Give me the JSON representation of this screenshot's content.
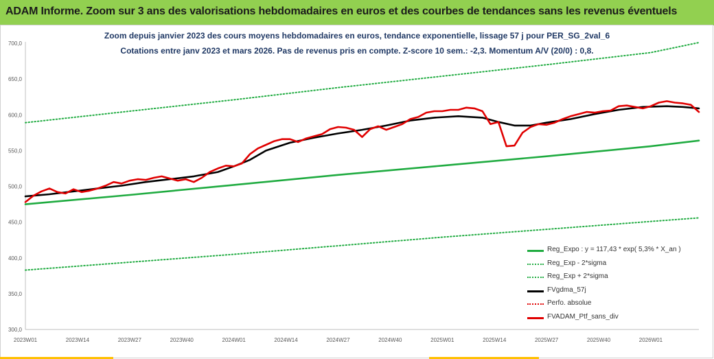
{
  "header": {
    "title": "ADAM Informe. Zoom sur 3 ans des valorisations hebdomadaires en euros et des courbes de tendances sans les revenus éventuels"
  },
  "chart_data": {
    "type": "line",
    "title": "Zoom depuis janvier 2023 des cours moyens hebdomadaires  en euros, tendance exponentielle, lissage 57 j pour PER_SG_2val_6",
    "subtitle": "Cotations entre janv 2023 et mars 2026. Pas de revenus pris en compte. Z-score 10 sem.: -2,3. Momentum A/V (20/0) : 0,8.",
    "xlabel": "",
    "ylabel": "",
    "ylim": [
      300,
      700
    ],
    "yticks": [
      "300,0",
      "350,0",
      "400,0",
      "450,0",
      "500,0",
      "550,0",
      "600,0",
      "650,0",
      "700,0"
    ],
    "x_ticks": [
      "2023W01",
      "2023W14",
      "2023W27",
      "2023W40",
      "2024W01",
      "2024W14",
      "2024W27",
      "2024W40",
      "2025W01",
      "2025W14",
      "2025W27",
      "2025W40",
      "2026W01"
    ],
    "x_range_weeks": [
      0,
      168
    ],
    "grid": false,
    "legend_position": "bottom-right",
    "series": [
      {
        "name": "Reg_Expo : y = 117,43 * exp( 5,3% *  X_an )",
        "color": "#1fab40",
        "style": "solid",
        "x": [
          0,
          26,
          52,
          78,
          104,
          130,
          156,
          168
        ],
        "values": [
          475,
          488,
          502,
          516,
          529,
          542,
          556,
          564
        ]
      },
      {
        "name": "Reg_Exp - 2*sigma",
        "color": "#1fab40",
        "style": "dotted",
        "x": [
          0,
          26,
          52,
          78,
          104,
          130,
          156,
          168
        ],
        "values": [
          383,
          394,
          405,
          417,
          429,
          440,
          451,
          456
        ]
      },
      {
        "name": "Reg_Exp + 2*sigma",
        "color": "#1fab40",
        "style": "dotted",
        "x": [
          0,
          26,
          52,
          78,
          104,
          130,
          156,
          168
        ],
        "values": [
          589,
          605,
          621,
          638,
          654,
          670,
          687,
          701
        ]
      },
      {
        "name": "FVgdma_57j",
        "color": "#000000",
        "style": "solid",
        "x": [
          0,
          6,
          12,
          18,
          24,
          30,
          36,
          42,
          48,
          52,
          56,
          60,
          66,
          72,
          78,
          84,
          90,
          96,
          102,
          108,
          114,
          118,
          122,
          126,
          130,
          136,
          142,
          148,
          154,
          160,
          164,
          168
        ],
        "values": [
          486,
          489,
          493,
          497,
          501,
          506,
          510,
          514,
          520,
          528,
          537,
          550,
          561,
          568,
          574,
          579,
          585,
          592,
          596,
          598,
          596,
          590,
          585,
          585,
          589,
          594,
          601,
          607,
          611,
          612,
          611,
          609
        ]
      },
      {
        "name": "Perfo. absolue",
        "color": "#e00000",
        "style": "dotted",
        "x": [],
        "values": []
      },
      {
        "name": "FVADAM_Ptf_sans_div",
        "color": "#e00000",
        "style": "solid",
        "x": [
          0,
          2,
          4,
          6,
          8,
          10,
          12,
          14,
          16,
          18,
          20,
          22,
          24,
          26,
          28,
          30,
          32,
          34,
          36,
          38,
          40,
          42,
          44,
          46,
          48,
          50,
          52,
          54,
          56,
          58,
          60,
          62,
          64,
          66,
          68,
          70,
          72,
          74,
          76,
          78,
          80,
          82,
          84,
          86,
          88,
          90,
          92,
          94,
          96,
          98,
          100,
          102,
          104,
          106,
          108,
          110,
          112,
          114,
          116,
          118,
          120,
          122,
          124,
          126,
          128,
          130,
          132,
          134,
          136,
          138,
          140,
          142,
          144,
          146,
          148,
          150,
          152,
          154,
          156,
          158,
          160,
          162,
          164,
          166,
          168
        ],
        "values": [
          478,
          487,
          493,
          497,
          492,
          490,
          496,
          492,
          494,
          497,
          501,
          506,
          504,
          508,
          510,
          509,
          512,
          514,
          511,
          508,
          510,
          506,
          512,
          520,
          525,
          529,
          528,
          532,
          545,
          553,
          558,
          563,
          566,
          566,
          562,
          567,
          570,
          573,
          580,
          583,
          582,
          579,
          569,
          580,
          584,
          579,
          583,
          587,
          594,
          597,
          603,
          605,
          605,
          607,
          607,
          610,
          609,
          605,
          587,
          590,
          556,
          557,
          575,
          583,
          587,
          586,
          589,
          594,
          598,
          601,
          604,
          603,
          605,
          606,
          612,
          613,
          611,
          609,
          612,
          617,
          619,
          617,
          616,
          614,
          604
        ]
      }
    ]
  },
  "legend": [
    {
      "label": "Reg_Expo : y = 117,43 * exp( 5,3% *  X_an )",
      "color": "#1fab40",
      "style": "solid"
    },
    {
      "label": "Reg_Exp - 2*sigma",
      "color": "#1fab40",
      "style": "dotted"
    },
    {
      "label": "Reg_Exp + 2*sigma",
      "color": "#1fab40",
      "style": "dotted"
    },
    {
      "label": "FVgdma_57j",
      "color": "#000000",
      "style": "solid"
    },
    {
      "label": "Perfo. absolue",
      "color": "#e00000",
      "style": "dotted"
    },
    {
      "label": "FVADAM_Ptf_sans_div",
      "color": "#e00000",
      "style": "solid"
    }
  ]
}
